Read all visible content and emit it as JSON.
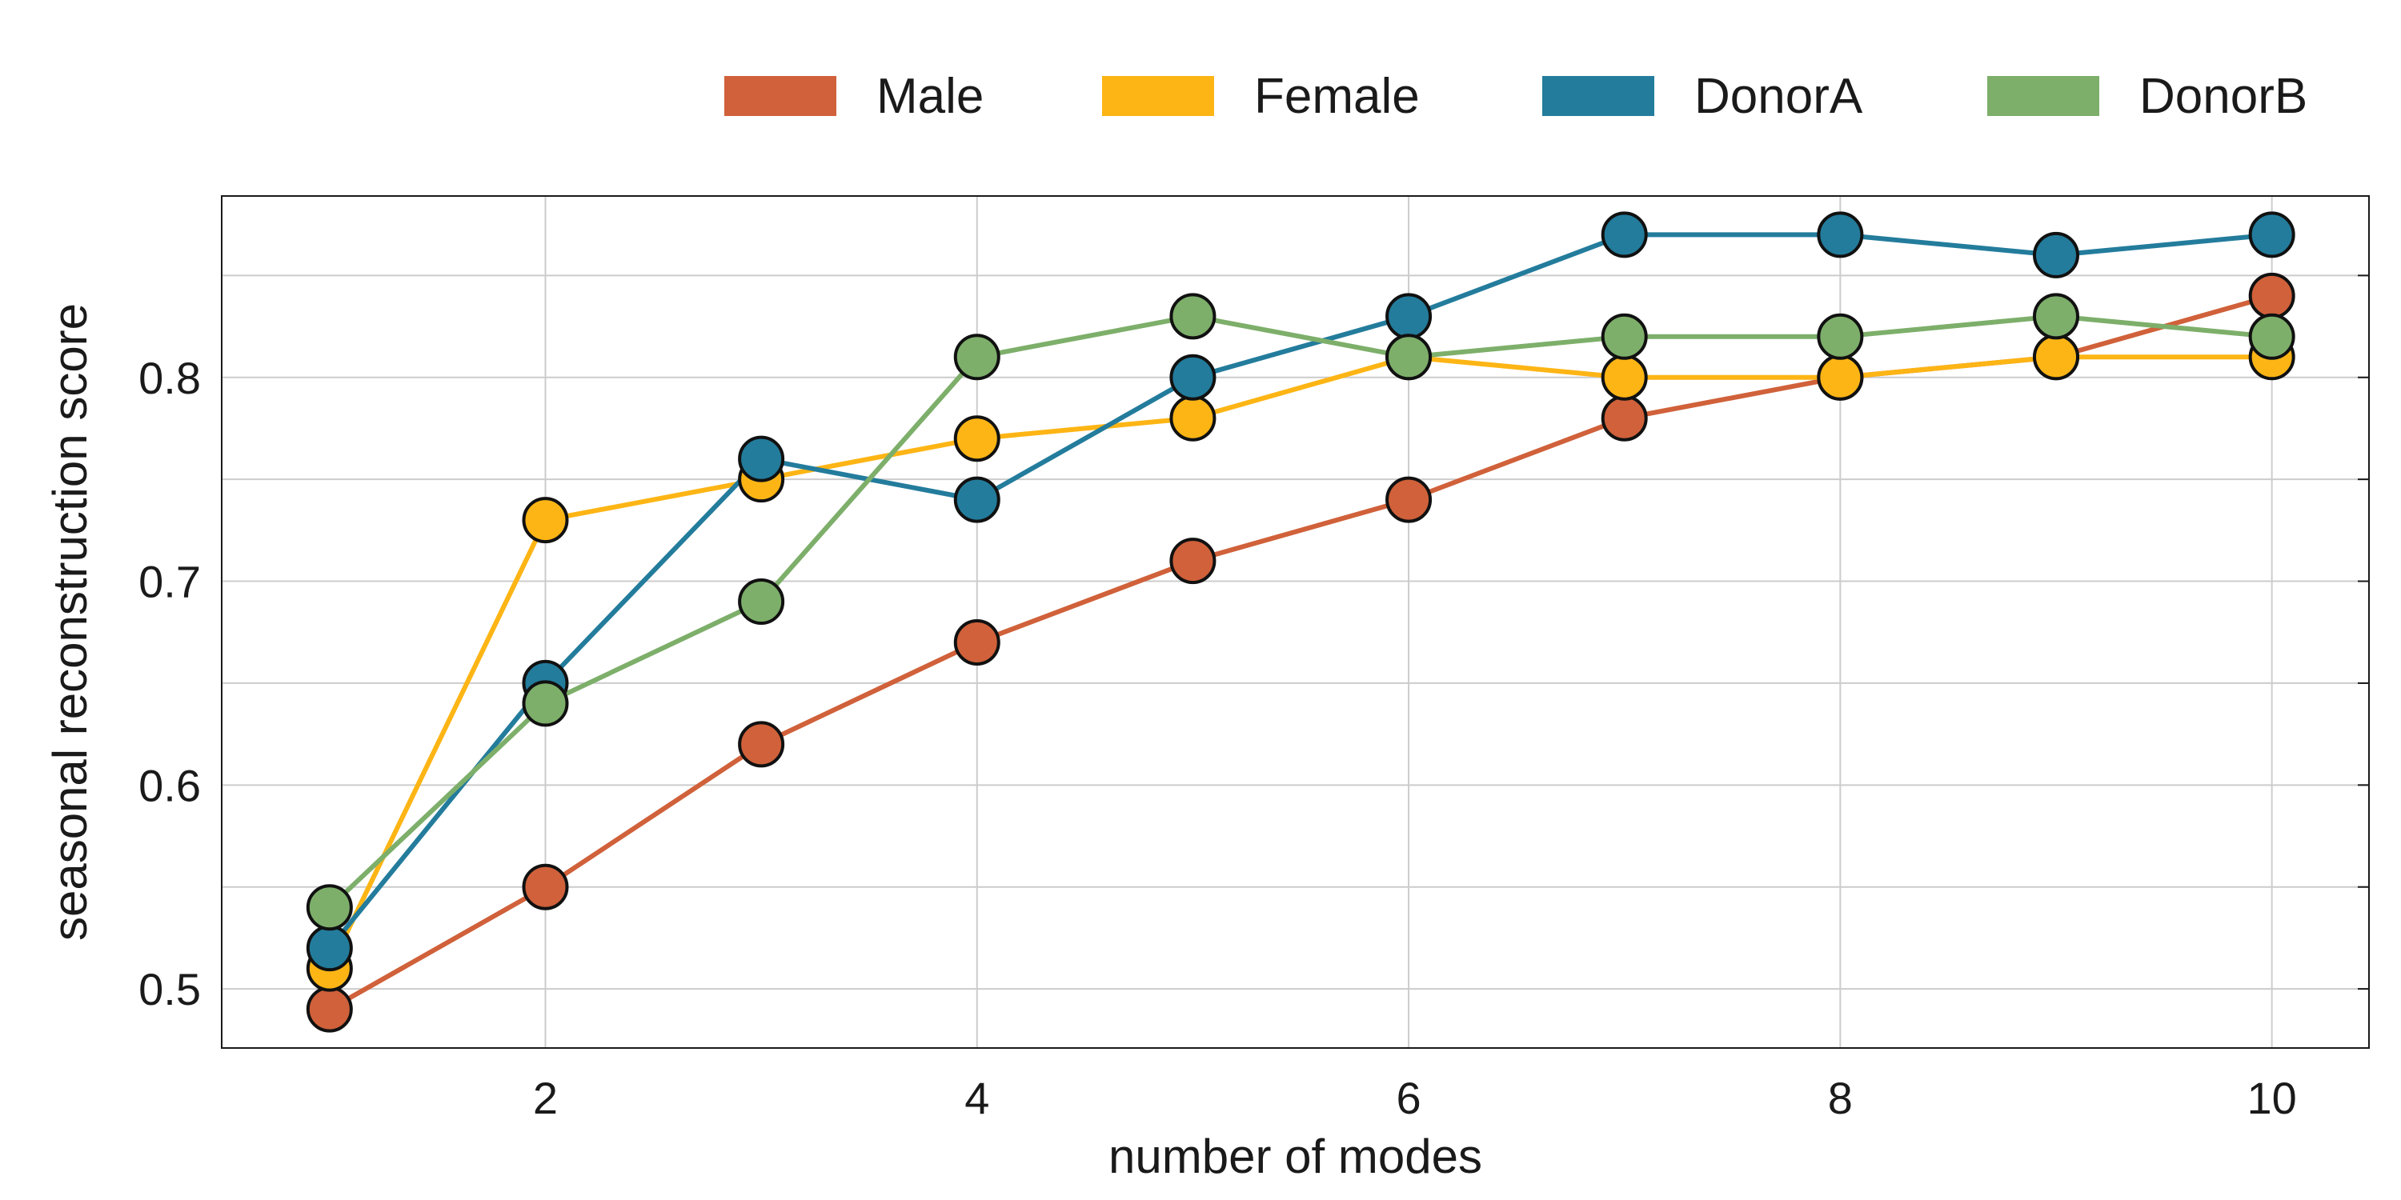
{
  "chart_data": {
    "type": "line",
    "title": "",
    "xlabel": "number of modes",
    "ylabel": "seasonal reconstruction score",
    "x": [
      1,
      2,
      3,
      4,
      5,
      6,
      7,
      8,
      9,
      10
    ],
    "xlim": [
      0.5,
      10.45
    ],
    "ylim": [
      0.471,
      0.889
    ],
    "xticks": [
      2,
      4,
      6,
      8,
      10
    ],
    "xtick_labels": [
      "2",
      "4",
      "6",
      "8",
      "10"
    ],
    "yticks": [
      0.5,
      0.6,
      0.7,
      0.8
    ],
    "ytick_labels": [
      "0.5",
      "0.6",
      "0.7",
      "0.8"
    ],
    "y_minor_grid": [
      0.55,
      0.65,
      0.75,
      0.85
    ],
    "grid": true,
    "legend_position": "top",
    "series": [
      {
        "name": "Male",
        "color": "#D0613A",
        "values": [
          0.49,
          0.55,
          0.62,
          0.67,
          0.71,
          0.74,
          0.78,
          0.8,
          0.81,
          0.84
        ]
      },
      {
        "name": "Female",
        "color": "#FDB515",
        "values": [
          0.51,
          0.73,
          0.75,
          0.77,
          0.78,
          0.81,
          0.8,
          0.8,
          0.81,
          0.81
        ]
      },
      {
        "name": "DonorA",
        "color": "#237C9C",
        "values": [
          0.52,
          0.65,
          0.76,
          0.74,
          0.8,
          0.83,
          0.87,
          0.87,
          0.86,
          0.87
        ]
      },
      {
        "name": "DonorB",
        "color": "#7DAF6A",
        "values": [
          0.54,
          0.64,
          0.69,
          0.81,
          0.83,
          0.81,
          0.82,
          0.82,
          0.83,
          0.82
        ]
      }
    ]
  }
}
